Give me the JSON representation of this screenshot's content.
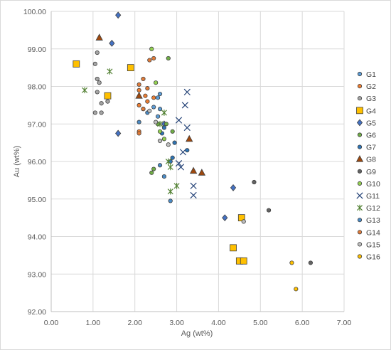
{
  "chart_data": {
    "type": "scatter",
    "title": "",
    "xlabel": "Ag (wt%)",
    "ylabel": "Au (wt%)",
    "xlim": [
      0,
      7
    ],
    "ylim": [
      92,
      100
    ],
    "x_ticks": [
      "0.00",
      "1.00",
      "2.00",
      "3.00",
      "4.00",
      "5.00",
      "6.00",
      "7.00"
    ],
    "y_ticks": [
      "92.00",
      "93.00",
      "94.00",
      "95.00",
      "96.00",
      "97.00",
      "98.00",
      "99.00",
      "100.00"
    ],
    "grid": true,
    "legend_position": "right",
    "series": [
      {
        "name": "G1",
        "marker": "circle",
        "color": "#5B9BD5",
        "points": [
          [
            2.55,
            97.7
          ],
          [
            2.6,
            97.8
          ],
          [
            2.45,
            97.45
          ],
          [
            2.6,
            97.4
          ],
          [
            2.55,
            97.2
          ]
        ]
      },
      {
        "name": "G2",
        "marker": "circle",
        "color": "#ED7D31",
        "points": [
          [
            2.1,
            97.9
          ],
          [
            2.25,
            97.75
          ],
          [
            2.1,
            97.5
          ],
          [
            2.2,
            97.4
          ],
          [
            2.3,
            97.6
          ],
          [
            2.45,
            97.7
          ],
          [
            2.1,
            96.8
          ]
        ]
      },
      {
        "name": "G3",
        "marker": "circle",
        "color": "#A5A5A5",
        "points": [
          [
            1.1,
            98.9
          ],
          [
            1.05,
            98.6
          ],
          [
            1.1,
            98.2
          ],
          [
            1.15,
            98.1
          ],
          [
            1.1,
            97.85
          ],
          [
            1.2,
            97.55
          ],
          [
            1.35,
            97.6
          ],
          [
            1.05,
            97.3
          ],
          [
            1.2,
            97.3
          ]
        ]
      },
      {
        "name": "G4",
        "marker": "square",
        "color": "#FFC000",
        "points": [
          [
            0.6,
            98.6
          ],
          [
            1.35,
            97.75
          ],
          [
            1.9,
            98.5
          ],
          [
            4.55,
            94.5
          ],
          [
            4.35,
            93.7
          ],
          [
            4.5,
            93.35
          ],
          [
            4.6,
            93.35
          ]
        ]
      },
      {
        "name": "G5",
        "marker": "diamond",
        "color": "#4472C4",
        "points": [
          [
            1.6,
            99.9
          ],
          [
            1.45,
            99.15
          ],
          [
            1.6,
            96.75
          ],
          [
            2.7,
            97.0
          ],
          [
            4.35,
            95.3
          ],
          [
            4.15,
            94.5
          ]
        ]
      },
      {
        "name": "G6",
        "marker": "circle",
        "color": "#70AD47",
        "points": [
          [
            2.8,
            98.75
          ],
          [
            2.55,
            97.0
          ],
          [
            2.75,
            97.0
          ],
          [
            2.9,
            96.8
          ],
          [
            2.45,
            95.8
          ],
          [
            2.4,
            95.7
          ]
        ]
      },
      {
        "name": "G7",
        "marker": "circle",
        "color": "#2E75B6",
        "points": [
          [
            2.7,
            96.9
          ],
          [
            2.65,
            96.75
          ],
          [
            2.95,
            96.5
          ],
          [
            3.25,
            96.3
          ],
          [
            2.85,
            96.0
          ],
          [
            2.9,
            96.1
          ]
        ]
      },
      {
        "name": "G8",
        "marker": "triangle",
        "color": "#9E480E",
        "points": [
          [
            1.15,
            99.3
          ],
          [
            2.1,
            97.75
          ],
          [
            3.3,
            96.6
          ],
          [
            3.4,
            95.75
          ],
          [
            3.6,
            95.7
          ]
        ]
      },
      {
        "name": "G9",
        "marker": "circle",
        "color": "#636363",
        "points": [
          [
            4.85,
            95.45
          ],
          [
            5.2,
            94.7
          ],
          [
            6.2,
            93.3
          ]
        ]
      },
      {
        "name": "G10",
        "marker": "circle",
        "color": "#92D050",
        "points": [
          [
            2.4,
            99.0
          ],
          [
            2.5,
            98.1
          ],
          [
            2.6,
            96.8
          ],
          [
            2.7,
            96.6
          ]
        ]
      },
      {
        "name": "G11",
        "marker": "x",
        "color": "#264478",
        "points": [
          [
            3.25,
            97.85
          ],
          [
            3.2,
            97.5
          ],
          [
            3.25,
            96.9
          ],
          [
            3.05,
            97.1
          ],
          [
            3.15,
            96.25
          ],
          [
            3.05,
            95.95
          ],
          [
            3.1,
            95.85
          ],
          [
            3.4,
            95.35
          ],
          [
            3.4,
            95.1
          ]
        ]
      },
      {
        "name": "G12",
        "marker": "star",
        "color": "#548235",
        "points": [
          [
            0.8,
            97.9
          ],
          [
            1.4,
            98.4
          ],
          [
            2.7,
            97.3
          ],
          [
            2.6,
            97.0
          ],
          [
            2.8,
            96.0
          ],
          [
            2.85,
            95.85
          ],
          [
            3.0,
            95.35
          ],
          [
            2.85,
            95.2
          ]
        ]
      },
      {
        "name": "G13",
        "marker": "circle",
        "color": "#4A8BC6",
        "points": [
          [
            2.1,
            97.05
          ],
          [
            2.3,
            97.3
          ],
          [
            2.7,
            95.6
          ],
          [
            2.85,
            94.95
          ],
          [
            2.6,
            95.9
          ]
        ]
      },
      {
        "name": "G14",
        "marker": "circle",
        "color": "#E07B39",
        "points": [
          [
            2.45,
            98.75
          ],
          [
            2.35,
            98.7
          ],
          [
            2.2,
            98.2
          ],
          [
            2.3,
            97.95
          ],
          [
            2.1,
            98.05
          ],
          [
            2.2,
            97.4
          ],
          [
            2.1,
            96.75
          ]
        ]
      },
      {
        "name": "G15",
        "marker": "circle",
        "color": "#BFBFBF",
        "points": [
          [
            2.35,
            97.35
          ],
          [
            2.5,
            97.05
          ],
          [
            2.6,
            96.55
          ],
          [
            2.8,
            96.45
          ],
          [
            4.6,
            94.4
          ]
        ]
      },
      {
        "name": "G16",
        "marker": "circle",
        "color": "#FFC000",
        "points": [
          [
            5.75,
            93.3
          ],
          [
            5.85,
            92.6
          ]
        ]
      }
    ]
  }
}
